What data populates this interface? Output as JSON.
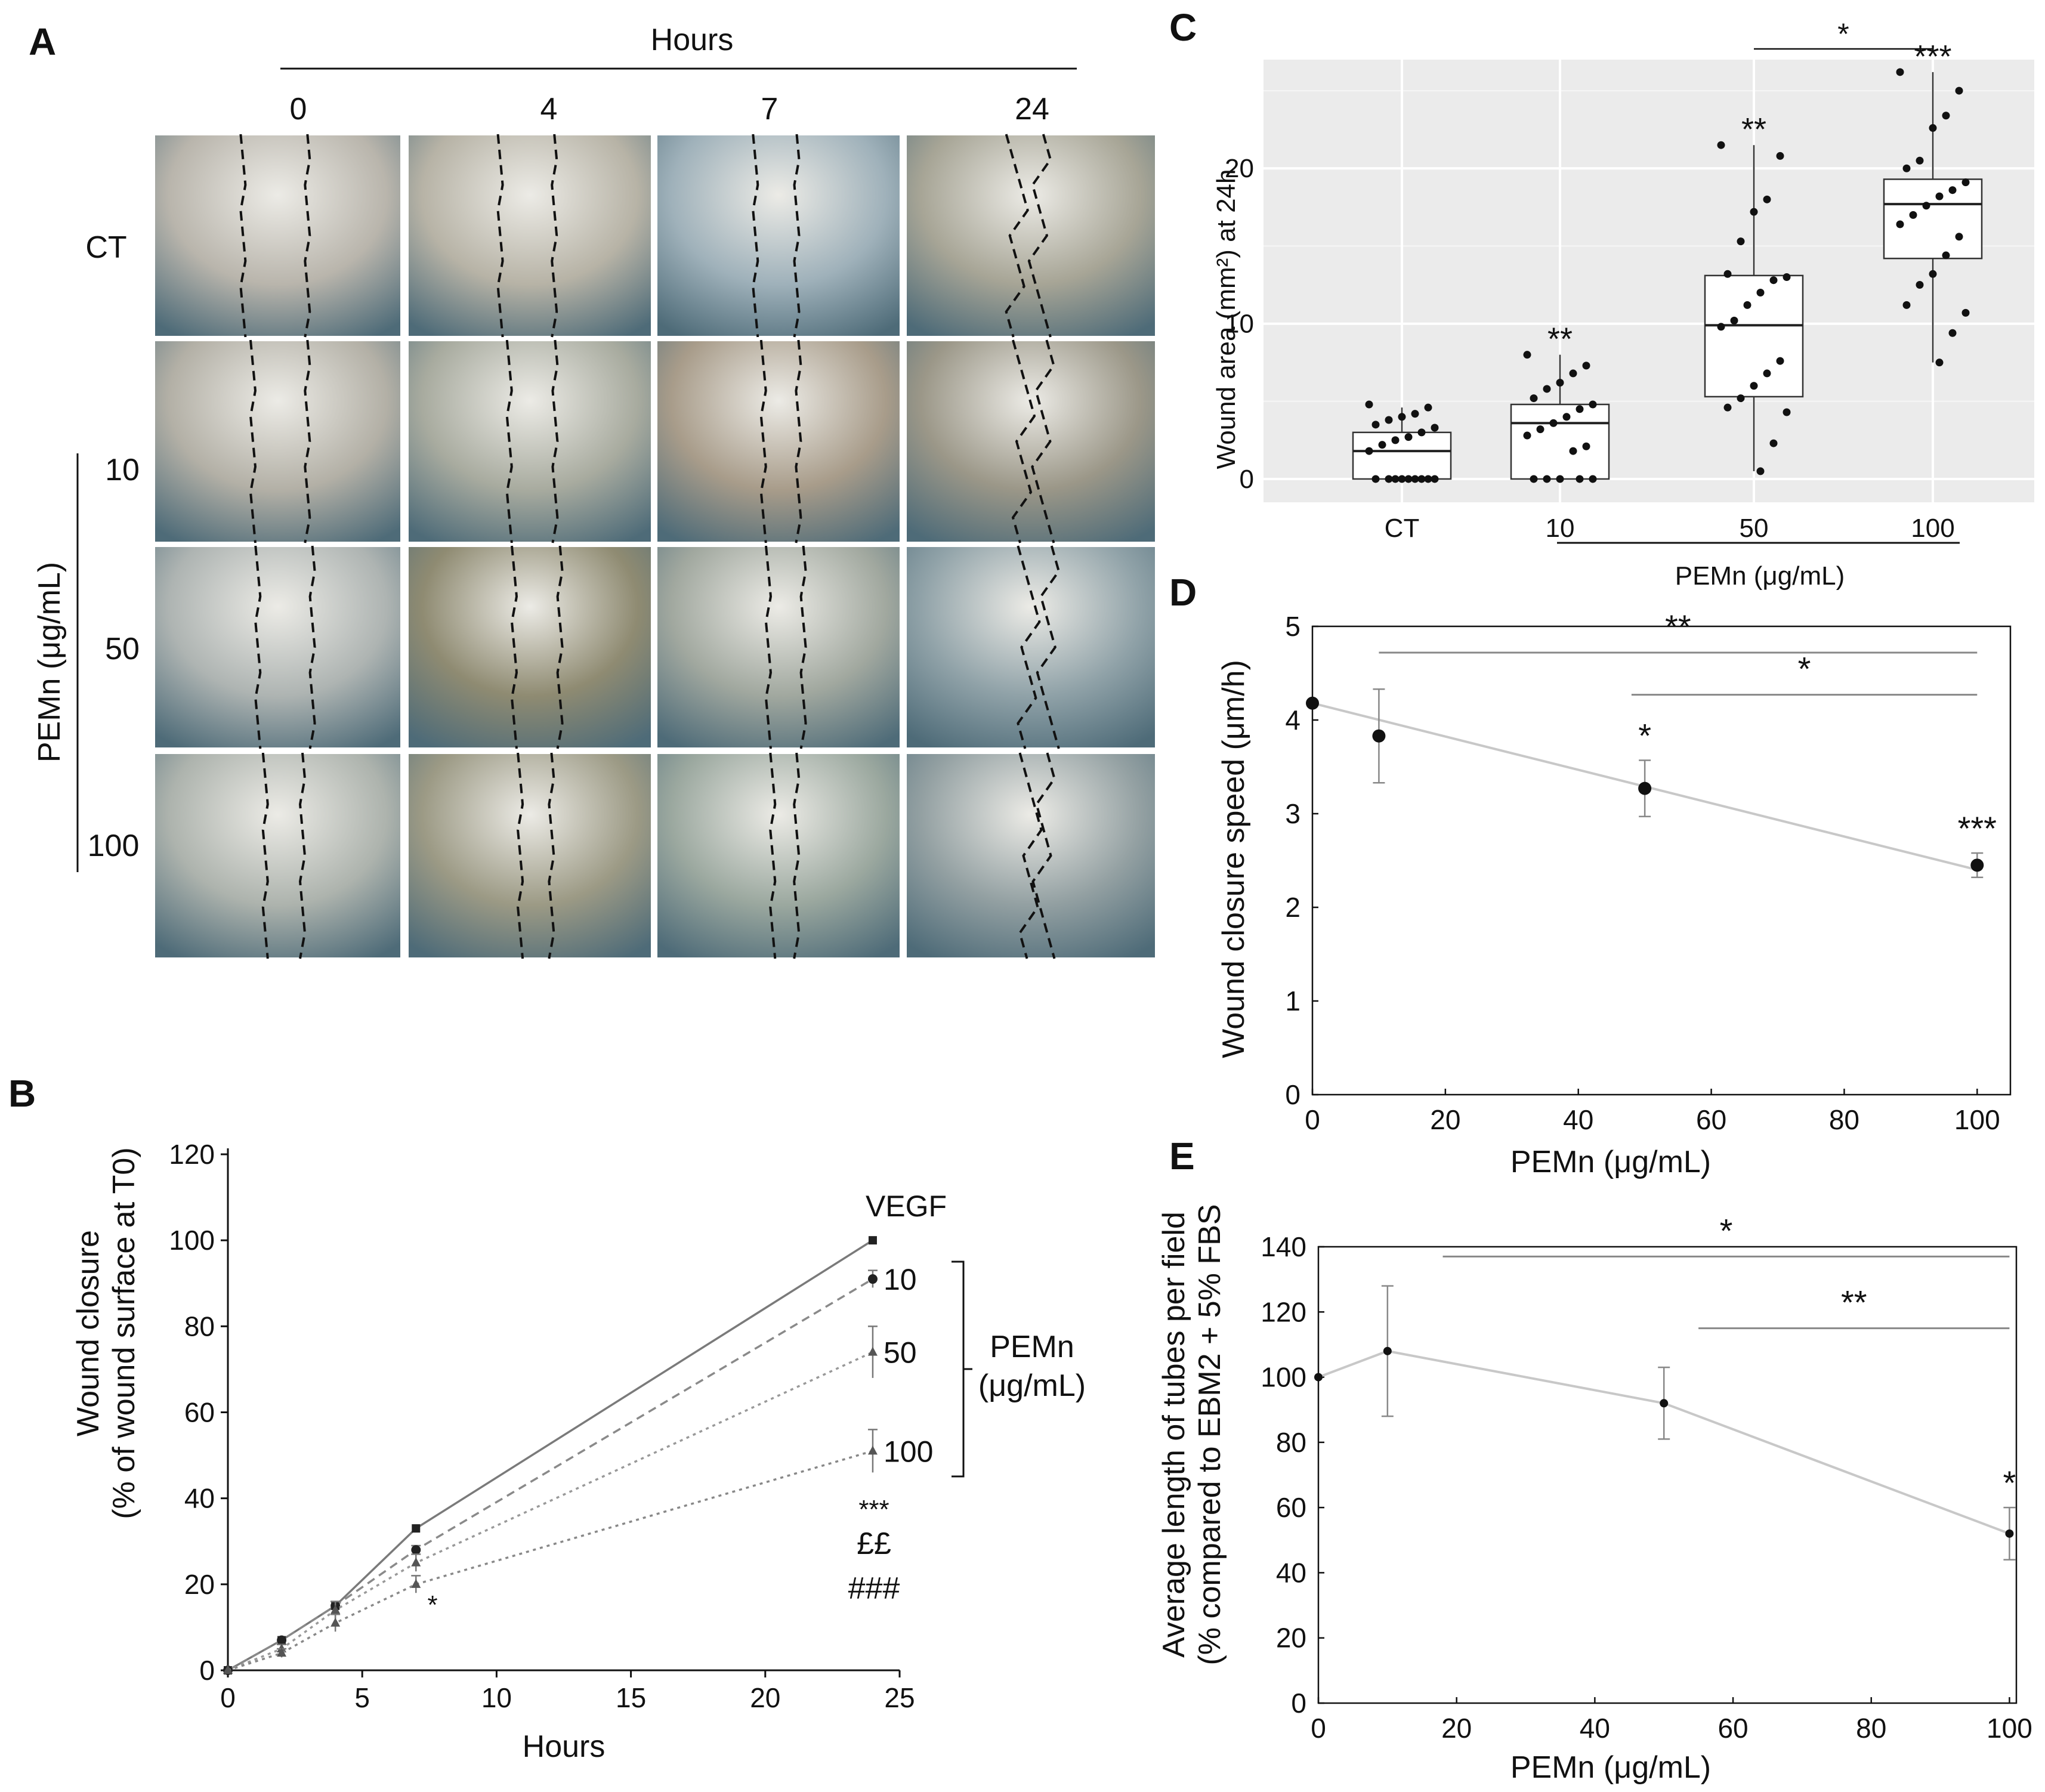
{
  "figure": {
    "panel_a": {
      "letter": "A",
      "hours_label": "Hours",
      "time_labels": [
        "0",
        "4",
        "7",
        "24"
      ],
      "row_labels": [
        "CT",
        "10",
        "50",
        "100"
      ],
      "group_label": "PEMn (μg/mL)",
      "tile_colors": [
        [
          "#b9b5ac",
          "#b7b3a6",
          "#9fb1ba",
          "#a7a596"
        ],
        [
          "#b3b0a6",
          "#a8ab9f",
          "#a89c8a",
          "#9b9788"
        ],
        [
          "#aeb4b2",
          "#8f8b72",
          "#a1a89f",
          "#90a2a8"
        ],
        [
          "#adb3ad",
          "#9c9a85",
          "#9ba89f",
          "#93a0a2"
        ]
      ]
    },
    "panel_b": {
      "letter": "B",
      "group_label_line1": "PEMn",
      "group_label_line2": "(μg/mL)",
      "annotations": [
        "***",
        "££",
        "###",
        "*"
      ]
    },
    "panel_c": {
      "letter": "C",
      "group_label": "PEMn (μg/mL)"
    },
    "panel_d": {
      "letter": "D"
    },
    "panel_e": {
      "letter": "E"
    }
  },
  "chart_data": [
    {
      "id": "B",
      "type": "line",
      "xlabel": "Hours",
      "ylabel_line1": "Wound closure",
      "ylabel_line2": "(% of wound surface at T0)",
      "xlim": [
        0,
        25
      ],
      "ylim": [
        0,
        120
      ],
      "xticks": [
        0,
        5,
        10,
        15,
        20,
        25
      ],
      "yticks": [
        0,
        20,
        40,
        60,
        80,
        100,
        120
      ],
      "series": [
        {
          "name": "VEGF",
          "marker": "square",
          "dash": "solid",
          "x": [
            0,
            2,
            4,
            7,
            24
          ],
          "y": [
            0,
            7,
            15,
            33,
            100
          ],
          "err": [
            0,
            0,
            0,
            0,
            0
          ]
        },
        {
          "name": "10",
          "marker": "circle",
          "dash": "dashed",
          "x": [
            0,
            2,
            4,
            7,
            24
          ],
          "y": [
            0,
            7,
            15,
            28,
            91
          ],
          "err": [
            0,
            0,
            1,
            1,
            2
          ]
        },
        {
          "name": "50",
          "marker": "triangle",
          "dash": "dotted",
          "x": [
            0,
            2,
            4,
            7,
            24
          ],
          "y": [
            0,
            5,
            14,
            25,
            74
          ],
          "err": [
            0,
            1,
            2,
            2,
            6
          ]
        },
        {
          "name": "100",
          "marker": "triangle",
          "dash": "dotted",
          "x": [
            0,
            2,
            4,
            7,
            24
          ],
          "y": [
            0,
            4,
            11,
            20,
            51
          ],
          "err": [
            0,
            1,
            2,
            2,
            5
          ]
        }
      ]
    },
    {
      "id": "C",
      "type": "box",
      "ylabel": "Wound area (mm²) at 24h",
      "ylim": [
        -1.5,
        27
      ],
      "yticks": [
        0,
        10,
        20
      ],
      "categories": [
        "CT",
        "10",
        "50",
        "100"
      ],
      "boxes": [
        {
          "category": "CT",
          "whisker_low": 0,
          "q1": 0,
          "median": 1.8,
          "q3": 3,
          "whisker_high": 4.6,
          "points": [
            4.8,
            4.6,
            4.2,
            4.0,
            3.8,
            3.5,
            3.3,
            3.0,
            2.7,
            2.5,
            2.2,
            1.8,
            0,
            0,
            0,
            0,
            0,
            0,
            0,
            0,
            0
          ]
        },
        {
          "category": "10",
          "whisker_low": 0,
          "q1": 0,
          "median": 3.6,
          "q3": 4.8,
          "whisker_high": 8.0,
          "points": [
            8.0,
            7.3,
            6.8,
            6.2,
            5.8,
            5.2,
            4.8,
            4.5,
            4.0,
            3.6,
            3.2,
            2.8,
            2.1,
            1.8,
            0,
            0,
            0,
            0,
            0
          ]
        },
        {
          "category": "50",
          "whisker_low": 0.5,
          "q1": 5.3,
          "median": 9.9,
          "q3": 13.1,
          "whisker_high": 21.5,
          "points": [
            21.5,
            20.8,
            18.0,
            17.2,
            15.3,
            13.2,
            13.0,
            12.8,
            12.0,
            11.2,
            10.2,
            9.8,
            7.6,
            6.8,
            6.0,
            5.2,
            4.6,
            4.3,
            2.3,
            0.5
          ]
        },
        {
          "category": "100",
          "whisker_low": 7.5,
          "q1": 14.2,
          "median": 17.7,
          "q3": 19.3,
          "whisker_high": 26.2,
          "points": [
            26.2,
            25.0,
            23.4,
            22.6,
            20.5,
            20.0,
            19.1,
            18.6,
            18.2,
            17.6,
            17.0,
            16.4,
            15.6,
            14.4,
            13.2,
            12.5,
            11.2,
            10.7,
            9.4,
            7.5
          ]
        }
      ],
      "significance": [
        {
          "category": "10",
          "label": "**"
        },
        {
          "category": "50",
          "label": "**"
        },
        {
          "category": "100",
          "label": "***"
        }
      ],
      "brackets": [
        {
          "from": "50",
          "to": "100",
          "label": "*"
        }
      ]
    },
    {
      "id": "D",
      "type": "scatter",
      "xlabel": "PEMn (μg/mL)",
      "ylabel": "Wound closure speed (μm/h)",
      "xlim": [
        0,
        105
      ],
      "ylim": [
        0,
        5
      ],
      "xticks": [
        0,
        20,
        40,
        60,
        80,
        100
      ],
      "yticks": [
        0,
        1,
        2,
        3,
        4,
        5
      ],
      "x": [
        0,
        10,
        50,
        100
      ],
      "y": [
        4.18,
        3.83,
        3.27,
        2.45
      ],
      "err": [
        0,
        0.5,
        0.3,
        0.13
      ],
      "trendline": {
        "x": [
          0,
          100
        ],
        "y": [
          4.18,
          2.4
        ]
      },
      "point_labels": [
        "",
        "",
        "*",
        "***"
      ],
      "brackets": [
        {
          "from": 10,
          "to": 100,
          "y": 4.72,
          "label": "**"
        },
        {
          "from": 48,
          "to": 100,
          "y": 4.27,
          "label": "*"
        }
      ]
    },
    {
      "id": "E",
      "type": "line",
      "xlabel": "PEMn (μg/mL)",
      "ylabel_line1": "Average length of tubes per field",
      "ylabel_line2": "(% compared to EBM2 + 5% FBS",
      "xlim": [
        0,
        101
      ],
      "ylim": [
        0,
        140
      ],
      "xticks": [
        0,
        20,
        40,
        60,
        80,
        100
      ],
      "yticks": [
        0,
        20,
        40,
        60,
        80,
        100,
        120,
        140
      ],
      "x": [
        0,
        10,
        50,
        100
      ],
      "y": [
        100,
        108,
        92,
        52
      ],
      "err": [
        0,
        20,
        11,
        8
      ],
      "point_labels": [
        "",
        "",
        "",
        "*"
      ],
      "brackets": [
        {
          "from": 18,
          "to": 100,
          "y": 137,
          "label": "*"
        },
        {
          "from": 55,
          "to": 100,
          "y": 115,
          "label": "**"
        }
      ]
    }
  ]
}
